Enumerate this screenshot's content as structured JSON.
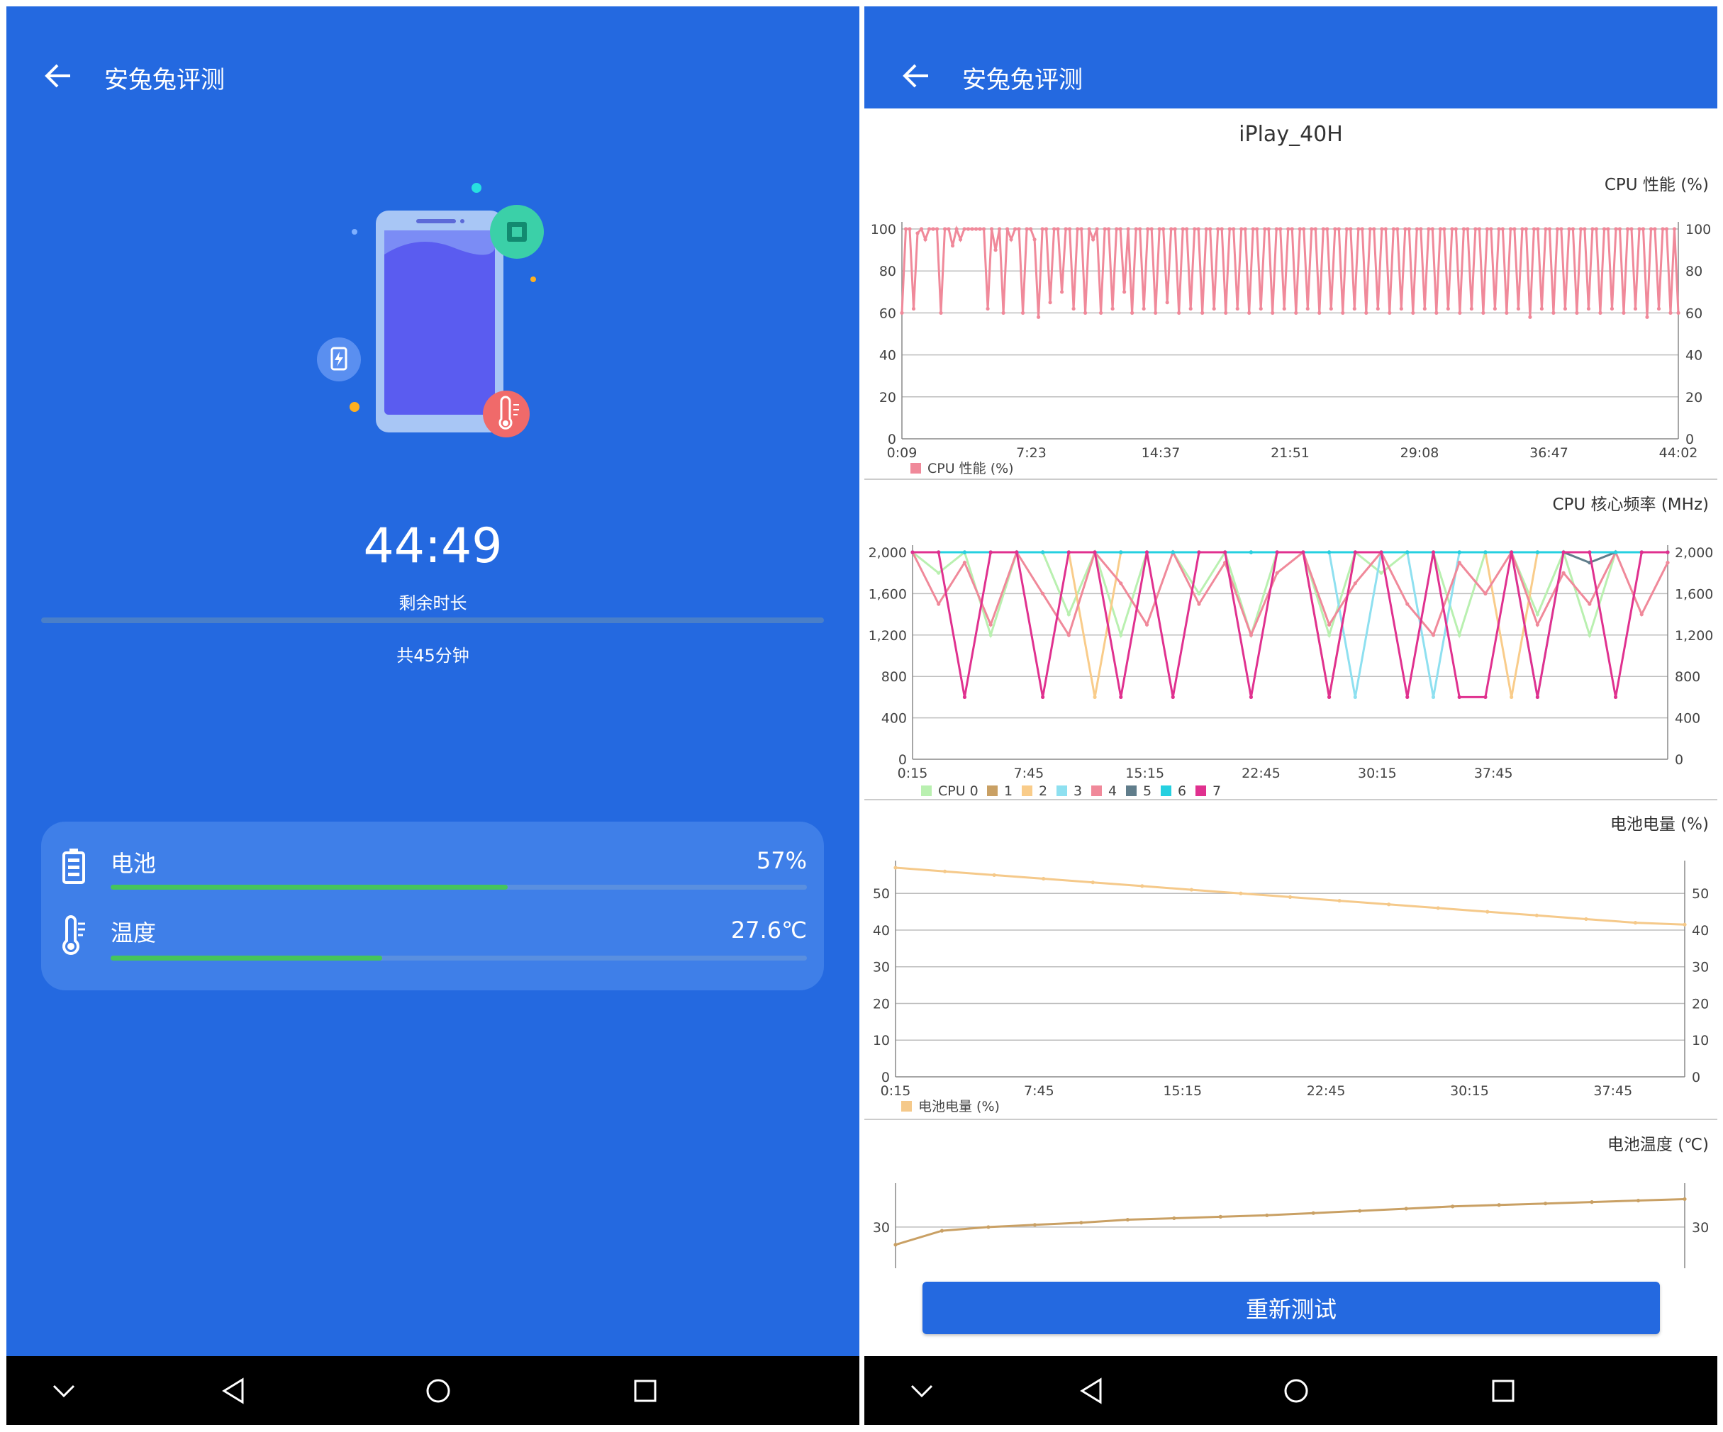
{
  "left": {
    "title": "安兔兔评测",
    "timer": "44:49",
    "timer_label": "剩余时长",
    "total": "共45分钟",
    "battery": {
      "label": "电池",
      "value": "57%",
      "level": 0.57
    },
    "temperature": {
      "label": "温度",
      "value": "27.6℃",
      "level": 0.39
    }
  },
  "right": {
    "title": "安兔兔评测",
    "device": "iPlay_40H",
    "retest_label": "重新测试"
  },
  "colors": {
    "primary": "#2469e0",
    "progress": "#45c45c",
    "cpu_perf": "#f0899a",
    "battery_level": "#f5c98a",
    "battery_temp": "#c9a064"
  },
  "icons": {
    "back": "arrow-left-icon",
    "battery": "battery-icon",
    "thermometer": "thermometer-icon",
    "nav": [
      "chevron-down-icon",
      "back-triangle-icon",
      "home-circle-icon",
      "recents-square-icon"
    ]
  },
  "chart_data": [
    {
      "type": "line",
      "title": "CPU 性能 (%)",
      "x_ticks": [
        "0:09",
        "7:23",
        "14:37",
        "21:51",
        "29:08",
        "36:47",
        "44:02"
      ],
      "y_ticks": [
        "0",
        "20",
        "40",
        "60",
        "80",
        "100"
      ],
      "ylim": [
        0,
        100
      ],
      "series": [
        {
          "name": "CPU 性能 (%)",
          "color": "#f0899a",
          "values": [
            60,
            100,
            100,
            62,
            98,
            100,
            95,
            100,
            100,
            100,
            60,
            100,
            100,
            92,
            100,
            95,
            100,
            100,
            100,
            100,
            100,
            100,
            62,
            100,
            90,
            100,
            60,
            100,
            95,
            100,
            100,
            60,
            100,
            100,
            95,
            58,
            100,
            100,
            65,
            100,
            100,
            70,
            100,
            100,
            62,
            100,
            100,
            60,
            100,
            95,
            100,
            60,
            100,
            100,
            62,
            100,
            100,
            70,
            100,
            60,
            100,
            100,
            62,
            100,
            100,
            60,
            100,
            100,
            65,
            100,
            100,
            60,
            100,
            100,
            62,
            100,
            100,
            60,
            100,
            100,
            62,
            100,
            100,
            60,
            100,
            100,
            62,
            100,
            100,
            60,
            100,
            100,
            62,
            100,
            100,
            60,
            100,
            100,
            62,
            100,
            100,
            60,
            100,
            100,
            62,
            100,
            100,
            60,
            100,
            100,
            62,
            100,
            100,
            60,
            100,
            100,
            62,
            100,
            100,
            60,
            100,
            100,
            62,
            100,
            100,
            60,
            100,
            100,
            62,
            100,
            100,
            60,
            100,
            100,
            62,
            100,
            100,
            60,
            100,
            100,
            62,
            100,
            100,
            60,
            100,
            100,
            62,
            100,
            100,
            60,
            100,
            100,
            62,
            100,
            100,
            60,
            100,
            100,
            62,
            100,
            100,
            58,
            100,
            100,
            62,
            100,
            100,
            60,
            100,
            100,
            62,
            100,
            100,
            60,
            100,
            100,
            62,
            100,
            100,
            60,
            100,
            100,
            62,
            100,
            100,
            60,
            100,
            100,
            62,
            100,
            100,
            58,
            100,
            100,
            62,
            100,
            100,
            60,
            100,
            60
          ]
        }
      ]
    },
    {
      "type": "line",
      "title": "CPU 核心频率 (MHz)",
      "x_ticks": [
        "0:15",
        "7:45",
        "15:15",
        "22:45",
        "30:15",
        "37:45"
      ],
      "y_ticks": [
        "0",
        "400",
        "800",
        "1,200",
        "1,600",
        "2,000"
      ],
      "ylim": [
        0,
        2000
      ],
      "legend": [
        "CPU 0",
        "1",
        "2",
        "3",
        "4",
        "5",
        "6",
        "7"
      ],
      "series": [
        {
          "name": "CPU 0",
          "color": "#b9f0b0",
          "values": [
            2000,
            1800,
            2000,
            1200,
            2000,
            2000,
            1400,
            2000,
            1200,
            2000,
            2000,
            1600,
            2000,
            1200,
            2000,
            2000,
            1200,
            2000,
            1800,
            2000,
            2000,
            1200,
            2000,
            2000,
            1400,
            2000,
            1200,
            2000,
            2000,
            2000
          ]
        },
        {
          "name": "1",
          "color": "#c9a064",
          "values": [
            2000,
            2000,
            2000,
            2000,
            2000,
            2000,
            2000,
            2000,
            2000,
            2000,
            2000,
            2000,
            2000,
            2000,
            2000,
            2000,
            2000,
            2000,
            2000,
            2000,
            2000,
            2000,
            2000,
            2000,
            2000,
            2000,
            2000,
            2000,
            2000,
            2000
          ]
        },
        {
          "name": "2",
          "color": "#f9cc8a",
          "values": [
            2000,
            2000,
            2000,
            2000,
            2000,
            2000,
            2000,
            600,
            2000,
            2000,
            2000,
            2000,
            2000,
            2000,
            2000,
            2000,
            600,
            2000,
            2000,
            2000,
            2000,
            2000,
            2000,
            600,
            2000,
            2000,
            2000,
            2000,
            2000,
            2000
          ]
        },
        {
          "name": "3",
          "color": "#8ee0f0",
          "values": [
            2000,
            2000,
            2000,
            2000,
            2000,
            2000,
            2000,
            2000,
            2000,
            2000,
            2000,
            2000,
            2000,
            2000,
            2000,
            2000,
            2000,
            600,
            2000,
            2000,
            600,
            2000,
            2000,
            2000,
            600,
            2000,
            2000,
            2000,
            2000,
            2000
          ]
        },
        {
          "name": "4",
          "color": "#f0899a",
          "values": [
            2000,
            1500,
            1900,
            1300,
            2000,
            1600,
            1200,
            2000,
            1700,
            1300,
            2000,
            1500,
            1900,
            1200,
            1800,
            2000,
            1300,
            1700,
            2000,
            1500,
            1200,
            1900,
            1600,
            2000,
            1300,
            1800,
            1500,
            2000,
            1400,
            1900
          ]
        },
        {
          "name": "5",
          "color": "#607d8b",
          "values": [
            2000,
            2000,
            2000,
            2000,
            2000,
            2000,
            2000,
            2000,
            2000,
            2000,
            2000,
            2000,
            2000,
            2000,
            2000,
            2000,
            2000,
            2000,
            2000,
            2000,
            2000,
            2000,
            2000,
            2000,
            2000,
            2000,
            1900,
            2000,
            2000,
            2000
          ]
        },
        {
          "name": "6",
          "color": "#26d0e0",
          "values": [
            2000,
            2000,
            2000,
            2000,
            2000,
            2000,
            2000,
            2000,
            2000,
            2000,
            2000,
            2000,
            2000,
            2000,
            2000,
            2000,
            2000,
            2000,
            2000,
            2000,
            2000,
            2000,
            2000,
            2000,
            2000,
            2000,
            2000,
            2000,
            2000,
            2000
          ]
        },
        {
          "name": "7",
          "color": "#e0318f",
          "values": [
            2000,
            2000,
            600,
            2000,
            2000,
            600,
            2000,
            2000,
            600,
            2000,
            600,
            2000,
            2000,
            600,
            2000,
            2000,
            600,
            2000,
            2000,
            600,
            2000,
            600,
            600,
            2000,
            600,
            2000,
            2000,
            600,
            2000,
            2000
          ]
        }
      ]
    },
    {
      "type": "line",
      "title": "电池电量 (%)",
      "x_ticks": [
        "0:15",
        "7:45",
        "15:15",
        "22:45",
        "30:15",
        "37:45"
      ],
      "y_ticks": [
        "0",
        "10",
        "20",
        "30",
        "40",
        "50"
      ],
      "ylim": [
        0,
        57
      ],
      "series": [
        {
          "name": "电池电量 (%)",
          "color": "#f5c98a",
          "values": [
            57,
            56,
            55,
            54,
            53,
            52,
            51,
            50,
            49,
            48,
            47,
            46,
            45,
            44,
            43,
            42,
            41.5
          ]
        }
      ]
    },
    {
      "type": "line",
      "title": "电池温度 (℃)",
      "y_ticks": [
        "30"
      ],
      "ylim": [
        22,
        35
      ],
      "series": [
        {
          "name": "电池温度 (℃)",
          "color": "#c9a064",
          "values": [
            27.6,
            29.5,
            30,
            30.3,
            30.6,
            31.0,
            31.2,
            31.4,
            31.6,
            31.9,
            32.2,
            32.5,
            32.8,
            33.0,
            33.2,
            33.4,
            33.6,
            33.8
          ]
        }
      ]
    }
  ]
}
